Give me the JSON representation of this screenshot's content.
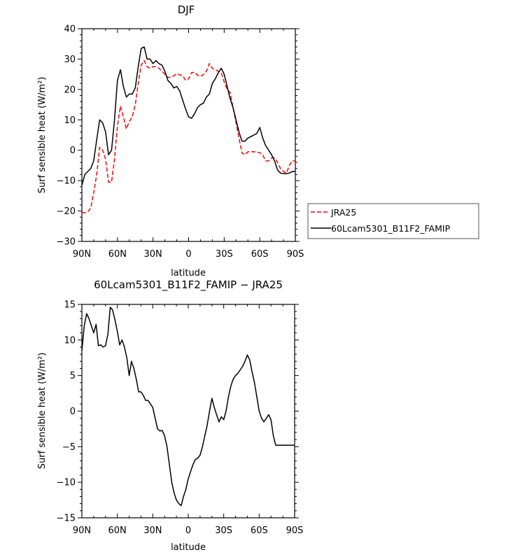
{
  "chart_data": [
    {
      "type": "line",
      "title": "DJF",
      "xlabel": "latitude",
      "ylabel": "Surf sensible heat (W/m²)",
      "xlim": [
        90,
        -90
      ],
      "ylim": [
        -30,
        40
      ],
      "x_ticks": [
        {
          "value": 90,
          "label": "90N"
        },
        {
          "value": 60,
          "label": "60N"
        },
        {
          "value": 30,
          "label": "30N"
        },
        {
          "value": 0,
          "label": "0"
        },
        {
          "value": -30,
          "label": "30S"
        },
        {
          "value": -60,
          "label": "60S"
        },
        {
          "value": -90,
          "label": "90S"
        }
      ],
      "y_ticks": [
        {
          "value": 40,
          "label": "40"
        },
        {
          "value": 30,
          "label": "30"
        },
        {
          "value": 20,
          "label": "20"
        },
        {
          "value": 10,
          "label": "10"
        },
        {
          "value": 0,
          "label": "0"
        },
        {
          "value": -10,
          "label": "−10"
        },
        {
          "value": -20,
          "label": "−20"
        },
        {
          "value": -30,
          "label": "−30"
        }
      ],
      "legend_position": "right",
      "series": [
        {
          "name": "JRA25",
          "color": "#ff0000",
          "dash": "dashed",
          "x": [
            90,
            87.5,
            85,
            82.5,
            80,
            77.5,
            75,
            72.5,
            70,
            67.5,
            65,
            62.5,
            60,
            57.5,
            55,
            52.5,
            50,
            47.5,
            45,
            42.5,
            40,
            37.5,
            35,
            32.5,
            30,
            27.5,
            25,
            22.5,
            20,
            17.5,
            15,
            12.5,
            10,
            7.5,
            5,
            2.5,
            0,
            -2.5,
            -5,
            -7.5,
            -10,
            -12.5,
            -15,
            -17.5,
            -20,
            -22.5,
            -25,
            -27.5,
            -30,
            -32.5,
            -35,
            -37.5,
            -40,
            -42.5,
            -45,
            -47.5,
            -50,
            -52.5,
            -55,
            -57.5,
            -60,
            -62.5,
            -65,
            -67.5,
            -70,
            -72.5,
            -75,
            -77.5,
            -80,
            -82.5,
            -85,
            -87.5,
            -90
          ],
          "y": [
            -20.5,
            -20.6,
            -20.3,
            -19.0,
            -14.0,
            -8.0,
            1.0,
            0.0,
            -3.0,
            -10.5,
            -10.5,
            -3.0,
            8.0,
            14.5,
            11.0,
            7.0,
            9.5,
            11.0,
            15.0,
            22.0,
            28.0,
            29.5,
            27.5,
            27.0,
            27.5,
            27.5,
            27.0,
            26.0,
            25.0,
            24.0,
            24.0,
            24.5,
            25.2,
            24.8,
            24.5,
            23.0,
            23.5,
            25.5,
            25.7,
            24.7,
            24.3,
            24.9,
            26.0,
            28.5,
            27.0,
            26.5,
            26.0,
            25.5,
            22.5,
            20.0,
            19.0,
            14.0,
            9.0,
            4.0,
            -1.0,
            -1.5,
            -0.5,
            -0.5,
            -0.5,
            -0.6,
            -0.8,
            -1.5,
            -3.5,
            -3.5,
            -2.5,
            -2.5,
            -4.0,
            -6.0,
            -7.0,
            -7.5,
            -5.0,
            -3.5,
            -3.5
          ]
        },
        {
          "name": "60Lcam5301_B11F2_FAMIP",
          "color": "#000000",
          "dash": "solid",
          "x": [
            90,
            87.5,
            85,
            82.5,
            80,
            77.5,
            75,
            72.5,
            70,
            67.5,
            65,
            62.5,
            60,
            57.5,
            55,
            52.5,
            50,
            47.5,
            45,
            42.5,
            40,
            37.5,
            35,
            32.5,
            30,
            27.5,
            25,
            22.5,
            20,
            17.5,
            15,
            12.5,
            10,
            7.5,
            5,
            2.5,
            0,
            -2.5,
            -5,
            -7.5,
            -10,
            -12.5,
            -15,
            -17.5,
            -20,
            -22.5,
            -25,
            -27.5,
            -30,
            -32.5,
            -35,
            -37.5,
            -40,
            -42.5,
            -45,
            -47.5,
            -50,
            -52.5,
            -55,
            -57.5,
            -60,
            -62.5,
            -65,
            -67.5,
            -70,
            -72.5,
            -75,
            -77.5,
            -80,
            -82.5,
            -85,
            -87.5,
            -90
          ],
          "y": [
            -11.5,
            -8.0,
            -7.0,
            -6.0,
            -3.5,
            3.5,
            10.0,
            9.0,
            6.0,
            -1.5,
            0.0,
            10.0,
            23.0,
            26.5,
            21.0,
            17.5,
            18.5,
            18.5,
            20.5,
            27.5,
            33.5,
            34.0,
            30.0,
            30.0,
            28.5,
            29.5,
            28.5,
            28.0,
            26.0,
            23.0,
            22.0,
            20.5,
            21.0,
            19.5,
            16.5,
            13.5,
            11.0,
            10.5,
            12.0,
            14.0,
            15.0,
            15.5,
            17.5,
            18.5,
            22.0,
            23.5,
            25.5,
            27.0,
            25.0,
            21.0,
            17.0,
            14.0,
            10.0,
            6.0,
            3.0,
            3.0,
            4.0,
            4.5,
            5.0,
            5.5,
            7.5,
            4.0,
            1.5,
            0.0,
            -1.5,
            -3.5,
            -6.5,
            -7.5,
            -7.7,
            -7.7,
            -7.5,
            -7.0,
            -7.0
          ]
        }
      ]
    },
    {
      "type": "line",
      "title": "60Lcam5301_B11F2_FAMIP − JRA25",
      "xlabel": "latitude",
      "ylabel": "Surf sensible heat (W/m²)",
      "xlim": [
        90,
        -90
      ],
      "ylim": [
        -15,
        15
      ],
      "x_ticks": [
        {
          "value": 90,
          "label": "90N"
        },
        {
          "value": 60,
          "label": "60N"
        },
        {
          "value": 30,
          "label": "30N"
        },
        {
          "value": 0,
          "label": "0"
        },
        {
          "value": -30,
          "label": "30S"
        },
        {
          "value": -60,
          "label": "60S"
        },
        {
          "value": -90,
          "label": "90S"
        }
      ],
      "y_ticks": [
        {
          "value": 15,
          "label": "15"
        },
        {
          "value": 10,
          "label": "10"
        },
        {
          "value": 5,
          "label": "5"
        },
        {
          "value": 0,
          "label": "0"
        },
        {
          "value": -5,
          "label": "−5"
        },
        {
          "value": -10,
          "label": "−10"
        },
        {
          "value": -15,
          "label": "−15"
        }
      ],
      "series": [
        {
          "color": "#000000",
          "dash": "solid",
          "x": [
            90,
            88,
            86,
            84,
            82,
            80,
            78,
            76,
            74,
            72,
            70,
            68,
            66,
            64,
            62,
            60,
            58,
            56,
            54,
            52,
            50,
            48,
            46,
            44,
            42,
            40,
            38,
            36,
            34,
            32,
            30,
            28,
            26,
            24,
            22,
            20,
            18,
            16,
            14,
            12,
            10,
            8,
            6,
            4,
            2,
            0,
            -2,
            -4,
            -6,
            -8,
            -10,
            -12,
            -14,
            -16,
            -18,
            -20,
            -22,
            -24,
            -26,
            -28,
            -30,
            -32,
            -34,
            -36,
            -38,
            -40,
            -42,
            -44,
            -46,
            -48,
            -50,
            -52,
            -54,
            -56,
            -58,
            -60,
            -62,
            -64,
            -66,
            -68,
            -70,
            -72,
            -74,
            -76,
            -78,
            -80,
            -82,
            -84,
            -86,
            -88,
            -90
          ],
          "y": [
            8.5,
            12.0,
            13.7,
            13.0,
            12.0,
            11.0,
            12.2,
            9.2,
            9.3,
            9.0,
            9.2,
            10.8,
            14.6,
            14.2,
            12.8,
            11.2,
            9.3,
            10.0,
            9.0,
            7.5,
            5.0,
            7.0,
            6.0,
            4.5,
            2.7,
            2.7,
            2.2,
            1.5,
            1.5,
            1.0,
            0.5,
            -1.0,
            -2.5,
            -2.8,
            -2.7,
            -3.5,
            -5.0,
            -7.5,
            -10.0,
            -11.5,
            -12.5,
            -13.0,
            -13.3,
            -12.0,
            -11.0,
            -9.5,
            -8.5,
            -7.5,
            -6.8,
            -6.6,
            -6.2,
            -5.0,
            -3.5,
            -2.0,
            0.0,
            1.8,
            0.5,
            -0.5,
            -1.5,
            -0.8,
            -1.2,
            0.0,
            2.0,
            3.5,
            4.5,
            5.0,
            5.3,
            5.8,
            6.3,
            7.0,
            7.9,
            7.2,
            5.5,
            4.0,
            2.0,
            0.0,
            -1.0,
            -1.5,
            -1.0,
            -0.5,
            -1.2,
            -3.5,
            -4.8,
            -4.8,
            -4.8,
            -4.8,
            -4.8,
            -4.8,
            -4.8,
            -4.8,
            -4.8
          ]
        }
      ]
    }
  ]
}
